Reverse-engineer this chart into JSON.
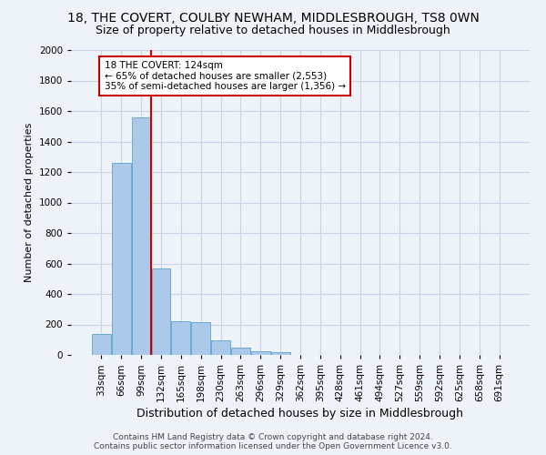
{
  "title": "18, THE COVERT, COULBY NEWHAM, MIDDLESBROUGH, TS8 0WN",
  "subtitle": "Size of property relative to detached houses in Middlesbrough",
  "xlabel": "Distribution of detached houses by size in Middlesbrough",
  "ylabel": "Number of detached properties",
  "footer_line1": "Contains HM Land Registry data © Crown copyright and database right 2024.",
  "footer_line2": "Contains public sector information licensed under the Open Government Licence v3.0.",
  "categories": [
    "33sqm",
    "66sqm",
    "99sqm",
    "132sqm",
    "165sqm",
    "198sqm",
    "230sqm",
    "263sqm",
    "296sqm",
    "329sqm",
    "362sqm",
    "395sqm",
    "428sqm",
    "461sqm",
    "494sqm",
    "527sqm",
    "559sqm",
    "592sqm",
    "625sqm",
    "658sqm",
    "691sqm"
  ],
  "values": [
    140,
    1260,
    1560,
    570,
    220,
    215,
    95,
    50,
    25,
    15,
    0,
    0,
    0,
    0,
    0,
    0,
    0,
    0,
    0,
    0,
    0
  ],
  "bar_color": "#adc9ea",
  "bar_edge_color": "#6aaad4",
  "vline_color": "#cc0000",
  "vline_bar_index": 2.5,
  "annotation_text_line1": "18 THE COVERT: 124sqm",
  "annotation_text_line2": "← 65% of detached houses are smaller (2,553)",
  "annotation_text_line3": "35% of semi-detached houses are larger (1,356) →",
  "annotation_box_color": "#ffffff",
  "annotation_box_edge": "#cc0000",
  "ylim": [
    0,
    2000
  ],
  "yticks": [
    0,
    200,
    400,
    600,
    800,
    1000,
    1200,
    1400,
    1600,
    1800,
    2000
  ],
  "grid_color": "#c8d4e8",
  "bg_color": "#eef2f9",
  "title_fontsize": 10,
  "subtitle_fontsize": 9,
  "xlabel_fontsize": 9,
  "ylabel_fontsize": 8,
  "tick_fontsize": 7.5,
  "annotation_fontsize": 7.5,
  "footer_fontsize": 6.5
}
